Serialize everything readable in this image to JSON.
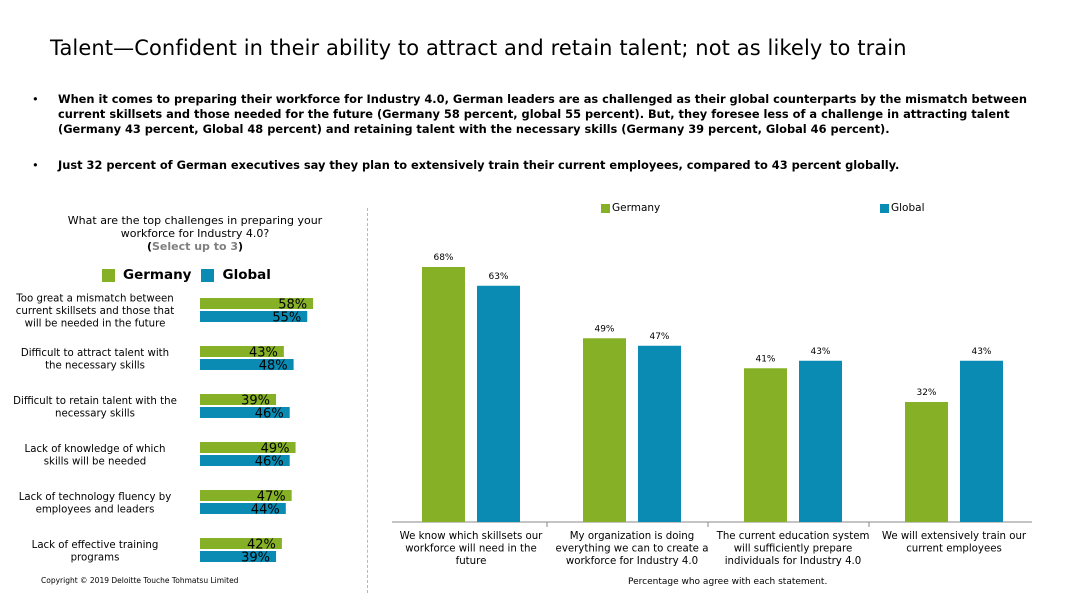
{
  "title": "Talent—Confident in their ability to attract and retain talent; not as likely to train",
  "bullets": [
    "When it comes to preparing their workforce for Industry 4.0, German leaders are as challenged as their global counterparts by the mismatch between current skillsets and those needed for the future (Germany 58 percent, global 55 percent). But, they foresee less of a challenge in attracting talent (Germany 43 percent, Global 48 percent) and retaining talent with the necessary skills (Germany 39 percent, Global 46 percent).",
    "Just 32 percent of German executives say they plan to extensively train their current employees, compared to 43 percent globally."
  ],
  "bullet_symbol": "•",
  "colors": {
    "germany": "#86b026",
    "global": "#0a8bb4"
  },
  "left_question": {
    "text": "What are the top challenges in preparing your workforce for Industry 4.0?",
    "hint_open": "(",
    "hint": "Select up to 3",
    "hint_close": ")"
  },
  "copyright": "Copyright © 2019 Deloitte Touche Tohmatsu Limited",
  "chart_data": [
    {
      "type": "bar",
      "orientation": "horizontal",
      "title": "",
      "categories": [
        [
          "Too great a mismatch between",
          "current skillsets and those that",
          "will be needed in the future"
        ],
        [
          "Difficult to attract talent with",
          "the necessary skills"
        ],
        [
          "Difficult to retain talent with the",
          "necessary skills"
        ],
        [
          "Lack of knowledge of which",
          "skills will be needed"
        ],
        [
          "Lack of technology fluency by",
          "employees and leaders"
        ],
        [
          "Lack of effective training",
          "programs"
        ]
      ],
      "series": [
        {
          "name": "Germany",
          "values": [
            58,
            43,
            39,
            49,
            47,
            42
          ],
          "labels": [
            "58%",
            "43%",
            "39%",
            "49%",
            "47%",
            "42%"
          ]
        },
        {
          "name": "Global",
          "values": [
            55,
            48,
            46,
            46,
            44,
            39
          ],
          "labels": [
            "55%",
            "48%",
            "46%",
            "46%",
            "44%",
            "39%"
          ]
        }
      ],
      "legend": "top",
      "grid": false
    },
    {
      "type": "bar",
      "orientation": "vertical",
      "title": "",
      "xlabel": "Percentage who agree with each statement.",
      "categories": [
        [
          "We know which skillsets our",
          "workforce will need in the",
          "future"
        ],
        [
          "My organization is doing",
          "everything we can to create a",
          "workforce for Industry 4.0"
        ],
        [
          "The current education system",
          "will sufficiently prepare",
          "individuals for Industry 4.0"
        ],
        [
          "We will extensively train our",
          "current employees"
        ]
      ],
      "series": [
        {
          "name": "Germany",
          "values": [
            68,
            49,
            41,
            32
          ],
          "labels": [
            "68%",
            "49%",
            "41%",
            "32%"
          ]
        },
        {
          "name": "Global",
          "values": [
            63,
            47,
            43,
            43
          ],
          "labels": [
            "63%",
            "47%",
            "43%",
            "43%"
          ]
        }
      ],
      "legend": "top",
      "grid": false
    }
  ]
}
